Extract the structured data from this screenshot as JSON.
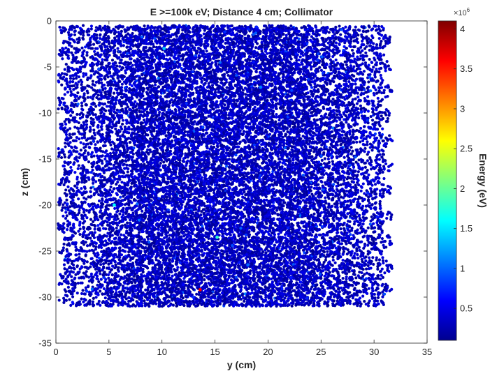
{
  "chart_data": {
    "type": "scatter",
    "title": "E >=100k eV; Distance 4 cm; Collimator",
    "xlabel": "y (cm)",
    "ylabel": "z (cm)",
    "xlim": [
      0,
      35
    ],
    "ylim": [
      -35,
      0
    ],
    "x_ticks": [
      "0",
      "5",
      "10",
      "15",
      "20",
      "25",
      "30",
      "35"
    ],
    "y_ticks": [
      "0",
      "-5",
      "-10",
      "-15",
      "-20",
      "-25",
      "-30",
      "-35"
    ],
    "x_tick_values": [
      0,
      5,
      10,
      15,
      20,
      25,
      30,
      35
    ],
    "y_tick_values": [
      0,
      -5,
      -10,
      -15,
      -20,
      -25,
      -30,
      -35
    ],
    "grid": false,
    "colormap": "parula",
    "colorbar": {
      "label": "Energy (eV)",
      "exponent_label": "×10",
      "exponent_power": "6",
      "range": [
        0.1,
        4.1
      ],
      "ticks": [
        "0.5",
        "1",
        "1.5",
        "2",
        "2.5",
        "3",
        "3.5",
        "4"
      ],
      "tick_values": [
        0.5,
        1,
        1.5,
        2,
        2.5,
        3,
        3.5,
        4
      ]
    },
    "point_cloud": {
      "y_extent": [
        0.2,
        31.8
      ],
      "z_extent": [
        -31,
        -0.5
      ],
      "cluster_pattern": "hexagonal",
      "cluster_spacing_y": 1.55,
      "cluster_spacing_z": 1.36,
      "typical_energy": 0.35,
      "outliers": [
        {
          "y": 5.5,
          "z": -20.0,
          "energy": 1.6
        },
        {
          "y": 10.2,
          "z": -3.0,
          "energy": 1.4
        },
        {
          "y": 15.2,
          "z": -23.5,
          "energy": 1.8
        },
        {
          "y": 13.6,
          "z": -29.2,
          "energy": 3.6
        },
        {
          "y": 19.3,
          "z": -7.2,
          "energy": 1.1
        },
        {
          "y": 18.1,
          "z": -26.5,
          "energy": 1.0
        }
      ]
    },
    "colors": {
      "point_dark": "#2a2580",
      "axis": "#262626",
      "background": "#ffffff"
    }
  }
}
